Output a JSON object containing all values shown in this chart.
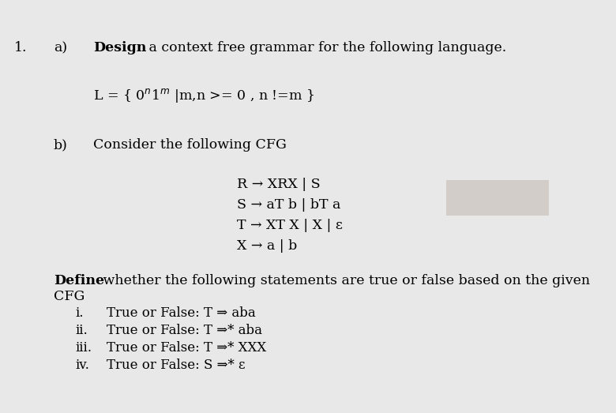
{
  "background_color": "#e8e8e8",
  "fig_width": 7.8,
  "fig_height": 5.23,
  "dpi": 100,
  "line1_num": "1.",
  "line1_a": "a)",
  "line1_bold": "Design",
  "line1_rest": " a context free grammar for the following language.",
  "line2": "L = { 0ⁿ1ᵐ |m,n >= 0 , n !=m }",
  "line3_b": "b)",
  "line3_text": "Consider the following CFG",
  "cfg_lines": [
    "R → XRX | S",
    "S → aT b | bT a",
    "T → XT X | X | ε",
    "X → a | b"
  ],
  "define_bold": "Define",
  "define_rest": " whether the following statements are true or false based on the given",
  "define_line2": "CFG",
  "items": [
    [
      "i.",
      "True or False: T ⇒ aba"
    ],
    [
      "ii.",
      "True or False: T ⇒* aba"
    ],
    [
      "iii.",
      "True or False: T ⇒* XXX"
    ],
    [
      "iv.",
      "True or False: S ⇒* ε"
    ]
  ],
  "rect_color": "#c0b8b0",
  "font_size": 12.5,
  "font_family": "DejaVu Serif"
}
